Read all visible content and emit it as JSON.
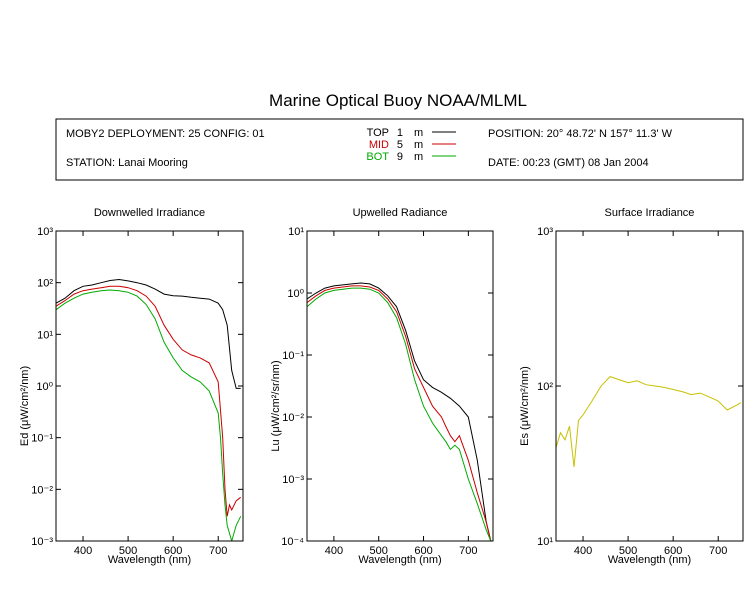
{
  "header": {
    "title": "Marine Optical Buoy NOAA/MLML",
    "deployment": "MOBY2 DEPLOYMENT: 25 CONFIG: 01",
    "station": "STATION: Lanai Mooring",
    "position": "POSITION: 20° 48.72' N   157° 11.3' W",
    "date": "DATE: 00:23 (GMT) 08 Jan 2004",
    "depth_legend": [
      {
        "label": "TOP",
        "depth": "1",
        "unit": "m",
        "color": "#000000"
      },
      {
        "label": "MID",
        "depth": "5",
        "unit": "m",
        "color": "#cc0000"
      },
      {
        "label": "BOT",
        "depth": "9",
        "unit": "m",
        "color": "#00aa00"
      }
    ]
  },
  "chart_data": [
    {
      "type": "line",
      "title": "Downwelled Irradiance",
      "xlabel": "Wavelength (nm)",
      "ylabel": "Ed (μW/cm²/nm)",
      "yscale": "log",
      "xlim": [
        340,
        755
      ],
      "ylim": [
        0.001,
        1000
      ],
      "xticks": [
        400,
        500,
        600,
        700
      ],
      "ytick_exponents": [
        -3,
        -2,
        -1,
        0,
        1,
        2,
        3
      ],
      "series": [
        {
          "name": "TOP",
          "color": "#000000",
          "x": [
            340,
            360,
            380,
            400,
            420,
            440,
            460,
            480,
            500,
            520,
            540,
            560,
            580,
            600,
            620,
            640,
            660,
            680,
            700,
            710,
            720,
            730,
            740,
            750
          ],
          "y": [
            40,
            50,
            70,
            85,
            90,
            100,
            110,
            115,
            108,
            100,
            90,
            75,
            60,
            56,
            55,
            52,
            50,
            48,
            40,
            30,
            15,
            2,
            0.9,
            0.9
          ]
        },
        {
          "name": "MID",
          "color": "#cc0000",
          "x": [
            340,
            360,
            380,
            400,
            420,
            440,
            460,
            480,
            500,
            520,
            540,
            560,
            580,
            600,
            620,
            640,
            660,
            680,
            700,
            710,
            715,
            720,
            725,
            730,
            740,
            750
          ],
          "y": [
            35,
            45,
            60,
            70,
            75,
            80,
            85,
            85,
            80,
            70,
            55,
            35,
            15,
            8,
            5,
            4,
            3.5,
            2.8,
            1.2,
            0.1,
            0.01,
            0.003,
            0.005,
            0.004,
            0.006,
            0.007
          ]
        },
        {
          "name": "BOT",
          "color": "#00aa00",
          "x": [
            340,
            360,
            380,
            400,
            420,
            440,
            460,
            480,
            500,
            520,
            540,
            560,
            580,
            600,
            620,
            640,
            660,
            680,
            700,
            705,
            710,
            715,
            720,
            730,
            740,
            750
          ],
          "y": [
            30,
            40,
            50,
            60,
            65,
            70,
            72,
            70,
            65,
            55,
            38,
            20,
            7,
            3.5,
            2,
            1.5,
            1.2,
            0.8,
            0.3,
            0.1,
            0.02,
            0.005,
            0.002,
            0.001,
            0.002,
            0.003
          ]
        }
      ]
    },
    {
      "type": "line",
      "title": "Upwelled Radiance",
      "xlabel": "Wavelength (nm)",
      "ylabel": "Lu (μW/cm²/sr/nm)",
      "yscale": "log",
      "xlim": [
        340,
        755
      ],
      "ylim": [
        0.0001,
        10
      ],
      "xticks": [
        400,
        500,
        600,
        700
      ],
      "ytick_exponents": [
        -4,
        -3,
        -2,
        -1,
        0,
        1
      ],
      "series": [
        {
          "name": "TOP",
          "color": "#000000",
          "x": [
            340,
            360,
            380,
            400,
            420,
            440,
            460,
            480,
            500,
            520,
            540,
            560,
            580,
            600,
            620,
            640,
            660,
            680,
            700,
            720,
            740,
            750
          ],
          "y": [
            0.8,
            1.0,
            1.2,
            1.3,
            1.35,
            1.4,
            1.45,
            1.4,
            1.2,
            0.9,
            0.6,
            0.25,
            0.08,
            0.04,
            0.03,
            0.025,
            0.02,
            0.015,
            0.01,
            0.002,
            0.0002,
            0.0001
          ]
        },
        {
          "name": "MID",
          "color": "#cc0000",
          "x": [
            340,
            360,
            380,
            400,
            420,
            440,
            460,
            480,
            500,
            520,
            540,
            560,
            580,
            600,
            620,
            640,
            650,
            660,
            670,
            680,
            700,
            720,
            740,
            750
          ],
          "y": [
            0.7,
            0.9,
            1.1,
            1.2,
            1.25,
            1.3,
            1.3,
            1.25,
            1.1,
            0.8,
            0.5,
            0.2,
            0.06,
            0.03,
            0.015,
            0.01,
            0.007,
            0.005,
            0.004,
            0.005,
            0.002,
            0.0006,
            0.0002,
            0.0001
          ]
        },
        {
          "name": "BOT",
          "color": "#00aa00",
          "x": [
            340,
            360,
            380,
            400,
            420,
            440,
            460,
            480,
            500,
            520,
            540,
            560,
            580,
            600,
            620,
            640,
            650,
            660,
            670,
            680,
            700,
            720,
            740,
            750
          ],
          "y": [
            0.6,
            0.8,
            1.0,
            1.1,
            1.15,
            1.2,
            1.2,
            1.15,
            1.0,
            0.7,
            0.4,
            0.15,
            0.04,
            0.015,
            0.008,
            0.005,
            0.004,
            0.003,
            0.0035,
            0.003,
            0.001,
            0.0004,
            0.00015,
            0.0001
          ]
        }
      ]
    },
    {
      "type": "line",
      "title": "Surface Irradiance",
      "xlabel": "Wavelength (nm)",
      "ylabel": "Es (μW/cm²/nm)",
      "yscale": "log",
      "xlim": [
        340,
        755
      ],
      "ylim": [
        10,
        1000
      ],
      "xticks": [
        400,
        500,
        600,
        700
      ],
      "ytick_exponents": [
        1,
        2,
        3
      ],
      "series": [
        {
          "name": "Es",
          "color": "#c8c000",
          "x": [
            340,
            350,
            360,
            370,
            380,
            390,
            400,
            420,
            440,
            460,
            480,
            500,
            520,
            540,
            560,
            580,
            600,
            620,
            640,
            660,
            680,
            700,
            720,
            740,
            750
          ],
          "y": [
            40,
            50,
            45,
            55,
            30,
            60,
            65,
            80,
            100,
            115,
            110,
            105,
            108,
            102,
            100,
            98,
            95,
            92,
            88,
            90,
            85,
            80,
            70,
            75,
            78
          ]
        }
      ]
    }
  ]
}
